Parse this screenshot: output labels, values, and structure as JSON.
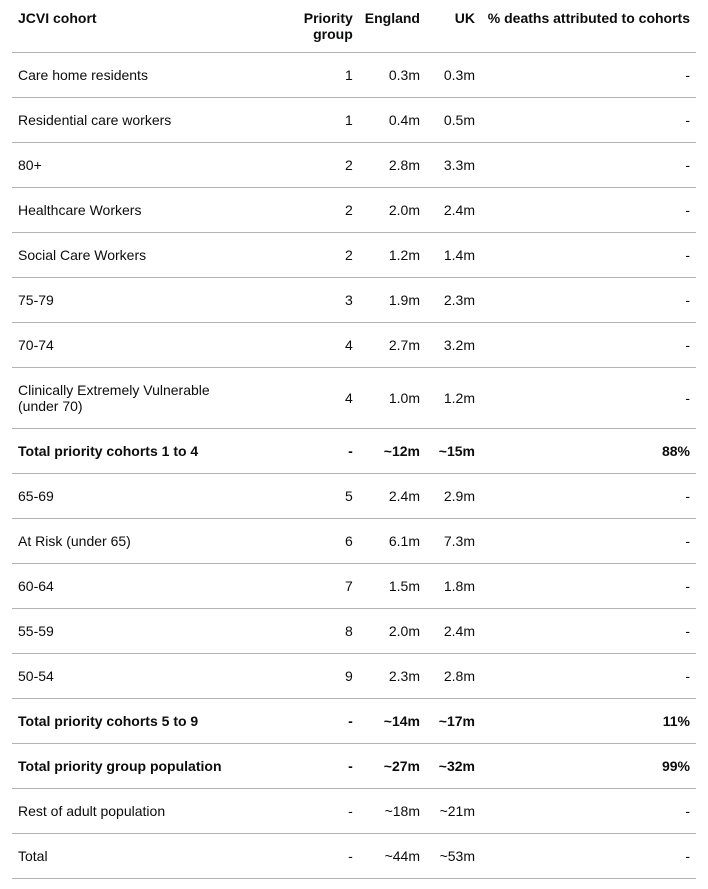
{
  "table": {
    "columns": [
      {
        "key": "cohort",
        "label": "JCVI cohort",
        "align": "left"
      },
      {
        "key": "priority",
        "label": "Priority group",
        "align": "right"
      },
      {
        "key": "england",
        "label": "England",
        "align": "right"
      },
      {
        "key": "uk",
        "label": "UK",
        "align": "right"
      },
      {
        "key": "deaths",
        "label": "% deaths attributed to cohorts",
        "align": "right"
      }
    ],
    "rows": [
      {
        "cohort": "Care home residents",
        "priority": "1",
        "england": "0.3m",
        "uk": "0.3m",
        "deaths": "-",
        "bold": false
      },
      {
        "cohort": "Residential care workers",
        "priority": "1",
        "england": "0.4m",
        "uk": "0.5m",
        "deaths": "-",
        "bold": false
      },
      {
        "cohort": "80+",
        "priority": "2",
        "england": "2.8m",
        "uk": "3.3m",
        "deaths": "-",
        "bold": false
      },
      {
        "cohort": "Healthcare Workers",
        "priority": "2",
        "england": "2.0m",
        "uk": "2.4m",
        "deaths": "-",
        "bold": false
      },
      {
        "cohort": "Social Care Workers",
        "priority": "2",
        "england": "1.2m",
        "uk": "1.4m",
        "deaths": "-",
        "bold": false
      },
      {
        "cohort": "75-79",
        "priority": "3",
        "england": "1.9m",
        "uk": "2.3m",
        "deaths": "-",
        "bold": false
      },
      {
        "cohort": "70-74",
        "priority": "4",
        "england": "2.7m",
        "uk": "3.2m",
        "deaths": "-",
        "bold": false
      },
      {
        "cohort": "Clinically Extremely Vulnerable (under 70)",
        "priority": "4",
        "england": "1.0m",
        "uk": "1.2m",
        "deaths": "-",
        "bold": false
      },
      {
        "cohort": "Total priority cohorts 1 to 4",
        "priority": "-",
        "england": "~12m",
        "uk": "~15m",
        "deaths": "88%",
        "bold": true
      },
      {
        "cohort": "65-69",
        "priority": "5",
        "england": "2.4m",
        "uk": "2.9m",
        "deaths": "-",
        "bold": false
      },
      {
        "cohort": "At Risk (under 65)",
        "priority": "6",
        "england": "6.1m",
        "uk": "7.3m",
        "deaths": "-",
        "bold": false
      },
      {
        "cohort": "60-64",
        "priority": "7",
        "england": "1.5m",
        "uk": "1.8m",
        "deaths": "-",
        "bold": false
      },
      {
        "cohort": "55-59",
        "priority": "8",
        "england": "2.0m",
        "uk": "2.4m",
        "deaths": "-",
        "bold": false
      },
      {
        "cohort": "50-54",
        "priority": "9",
        "england": "2.3m",
        "uk": "2.8m",
        "deaths": "-",
        "bold": false
      },
      {
        "cohort": "Total priority cohorts 5 to 9",
        "priority": "-",
        "england": "~14m",
        "uk": "~17m",
        "deaths": "11%",
        "bold": true
      },
      {
        "cohort": "Total priority group population",
        "priority": "-",
        "england": "~27m",
        "uk": "~32m",
        "deaths": "99%",
        "bold": true
      },
      {
        "cohort": "Rest of adult population",
        "priority": "-",
        "england": "~18m",
        "uk": "~21m",
        "deaths": "-",
        "bold": false
      },
      {
        "cohort": "Total",
        "priority": "-",
        "england": "~44m",
        "uk": "~53m",
        "deaths": "-",
        "bold": false
      }
    ]
  }
}
